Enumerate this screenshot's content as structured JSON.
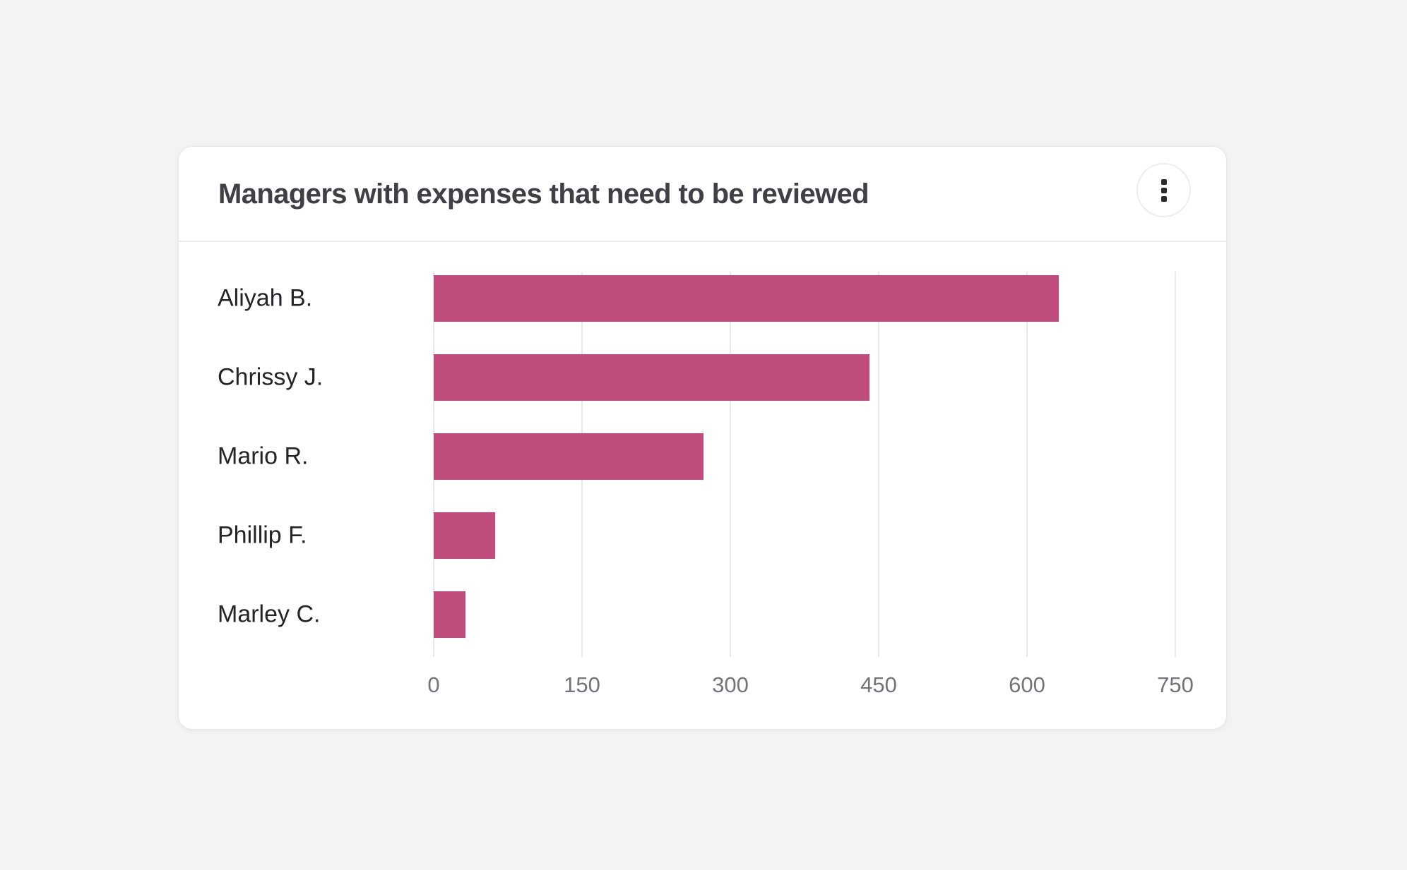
{
  "page": {
    "background_color": "#f3f3f3"
  },
  "card": {
    "title": "Managers with expenses that need to be reviewed",
    "menu_icon": "kebab-menu-icon"
  },
  "chart_data": {
    "type": "bar",
    "orientation": "horizontal",
    "title": "Managers with expenses that need to be reviewed",
    "categories": [
      "Aliyah B.",
      "Chrissy J.",
      "Mario R.",
      "Phillip F.",
      "Marley C."
    ],
    "values": [
      632,
      441,
      273,
      62,
      32
    ],
    "x_ticks": [
      "0",
      "150",
      "300",
      "450",
      "600",
      "750"
    ],
    "x_tick_values": [
      0,
      150,
      300,
      450,
      600,
      750
    ],
    "xlim": [
      0,
      750
    ],
    "xlabel": "",
    "ylabel": "",
    "bar_color": "#bf4c7c",
    "grid": true,
    "gridline_color": "#e9e9eb",
    "legend": false
  }
}
